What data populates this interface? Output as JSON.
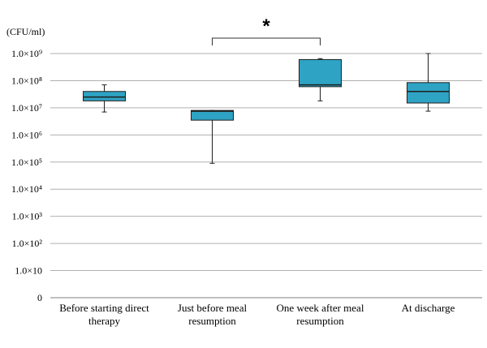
{
  "chart_data": {
    "type": "box",
    "y_unit": "(CFU/ml)",
    "y_scale": "log10",
    "ylim": [
      1,
      1000000000
    ],
    "y_ticks": [
      {
        "value": 1,
        "label": "0"
      },
      {
        "value": 10,
        "label": "1.0×10"
      },
      {
        "value": 100,
        "label": "1.0×10²"
      },
      {
        "value": 1000,
        "label": "1.0×10³"
      },
      {
        "value": 10000,
        "label": "1.0×10⁴"
      },
      {
        "value": 100000,
        "label": "1.0×10⁵"
      },
      {
        "value": 1000000,
        "label": "1.0×10⁶"
      },
      {
        "value": 10000000,
        "label": "1.0×10⁷"
      },
      {
        "value": 100000000,
        "label": "1.0×10⁸"
      },
      {
        "value": 1000000000,
        "label": "1.0×10⁹"
      }
    ],
    "categories": [
      [
        "Before starting direct",
        "therapy"
      ],
      [
        "Just before meal",
        "resumption"
      ],
      [
        "One week after meal",
        "resumption"
      ],
      [
        "At discharge"
      ]
    ],
    "boxes": [
      {
        "min": 7000000,
        "q1": 18000000,
        "median": 25000000,
        "q3": 40000000,
        "max": 70000000
      },
      {
        "min": 90000,
        "q1": 3500000,
        "median": 7500000,
        "q3": 8000000,
        "max": 8000000
      },
      {
        "min": 18000000,
        "q1": 60000000,
        "median": 70000000,
        "q3": 600000000,
        "max": 650000000
      },
      {
        "min": 7500000,
        "q1": 15000000,
        "median": 40000000,
        "q3": 85000000,
        "max": 1000000000
      }
    ],
    "fill_color": "#2ea3c4",
    "grid": true,
    "significance": {
      "from": 1,
      "to": 2,
      "label": "*"
    }
  }
}
